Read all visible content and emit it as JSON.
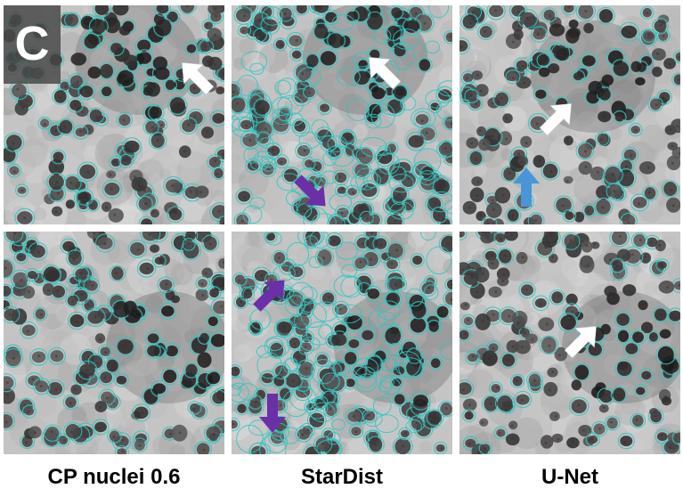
{
  "panel_letter": "C",
  "columns": [
    {
      "label": "CP nuclei 0.6"
    },
    {
      "label": "StarDist"
    },
    {
      "label": "U-Net"
    }
  ],
  "colors": {
    "outline": "#2fc6c0",
    "arrow_white": "#ffffff",
    "arrow_purple": "#6b2fa8",
    "arrow_blue": "#4a95d8",
    "nucleus": "#2e2e2e",
    "background": "#c4c4c4"
  },
  "arrows": [
    {
      "panel": 0,
      "color": "white",
      "direction": "up-left"
    },
    {
      "panel": 1,
      "color": "white",
      "direction": "up-left"
    },
    {
      "panel": 1,
      "color": "purple",
      "direction": "down-right"
    },
    {
      "panel": 2,
      "color": "white",
      "direction": "up-right"
    },
    {
      "panel": 2,
      "color": "blue",
      "direction": "up"
    },
    {
      "panel": 4,
      "color": "purple",
      "direction": "up-right"
    },
    {
      "panel": 4,
      "color": "purple",
      "direction": "down"
    },
    {
      "panel": 5,
      "color": "white",
      "direction": "up-right"
    }
  ]
}
